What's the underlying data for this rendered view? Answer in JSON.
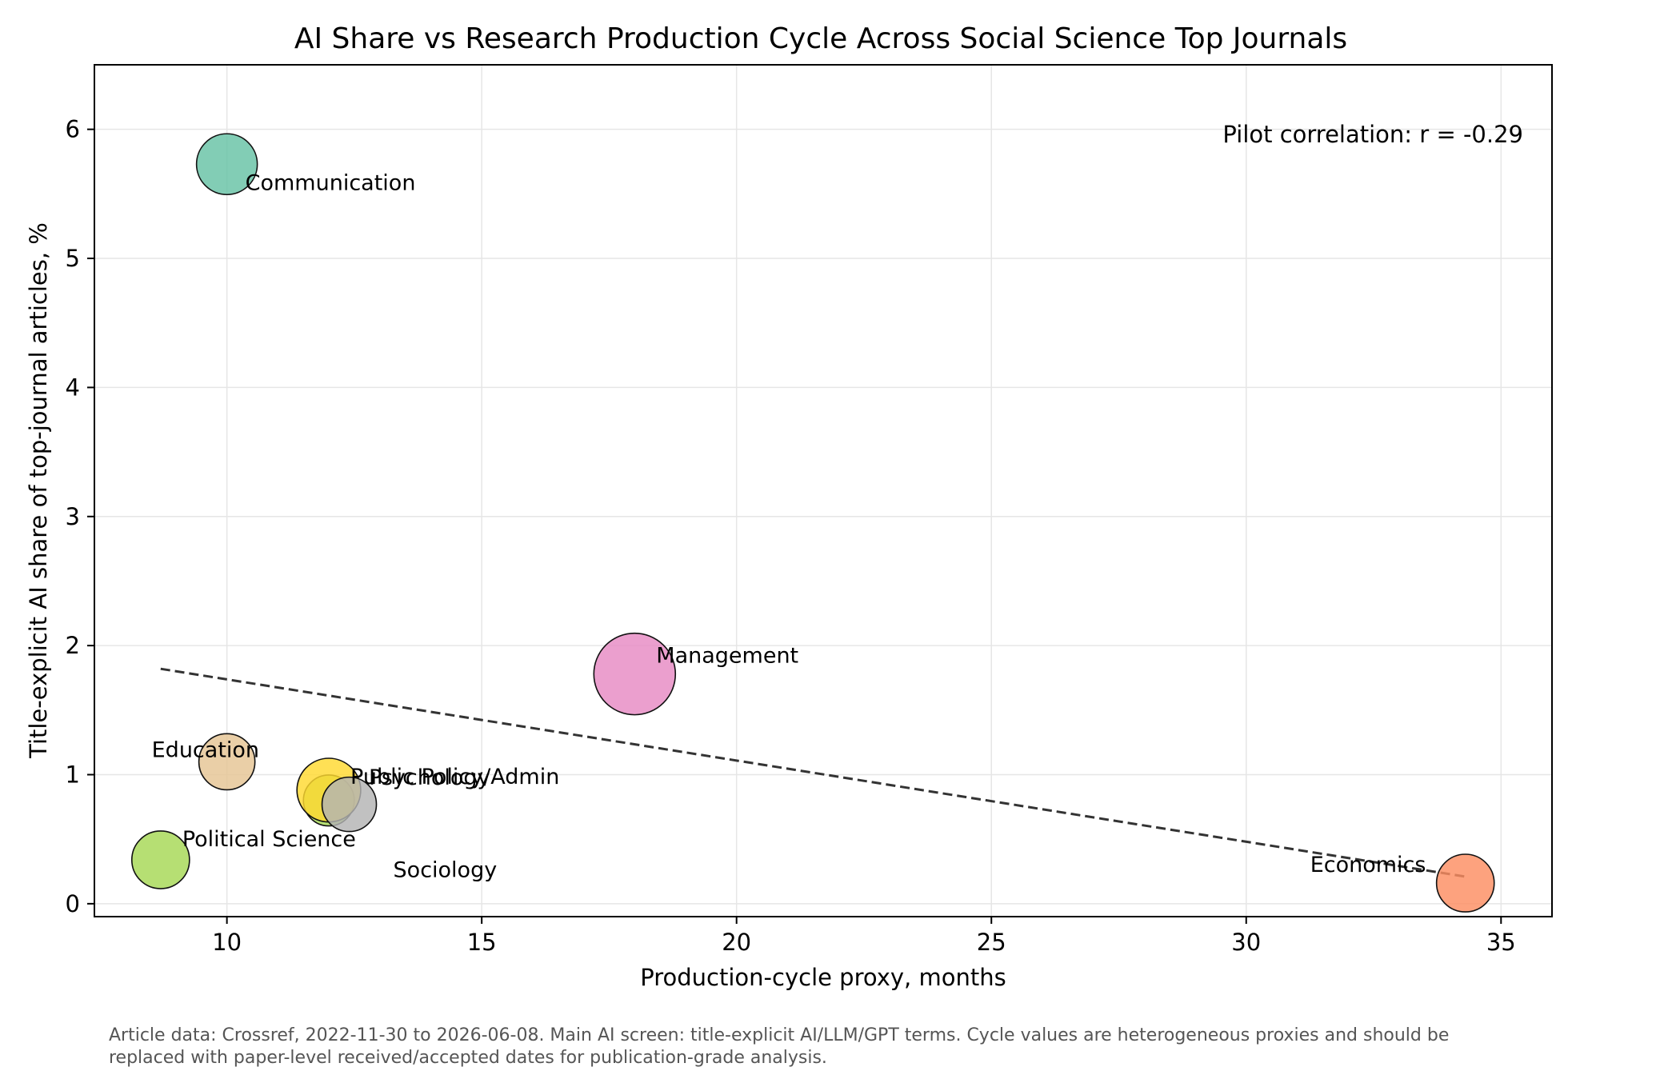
{
  "chart_data": {
    "type": "scatter",
    "title": "AI Share vs Research Production Cycle Across Social Science Top Journals",
    "xlabel": "Production-cycle proxy, months",
    "ylabel": "Title-explicit AI share of top-journal articles, %",
    "xlim": [
      7.4,
      36.0
    ],
    "ylim": [
      -0.1,
      6.5
    ],
    "xticks": [
      10,
      15,
      20,
      25,
      30,
      35
    ],
    "yticks": [
      0,
      1,
      2,
      3,
      4,
      5,
      6
    ],
    "grid": true,
    "points": [
      {
        "label": "Communication",
        "x": 10.0,
        "y": 5.73,
        "size": 1.0,
        "color": "#66c2a5"
      },
      {
        "label": "Management",
        "x": 18.0,
        "y": 1.78,
        "size": 1.8,
        "color": "#e78ac3"
      },
      {
        "label": "Education",
        "x": 10.0,
        "y": 1.1,
        "size": 0.85,
        "color": "#e5c494"
      },
      {
        "label": "Public Policy/Admin",
        "x": 12.0,
        "y": 0.8,
        "size": 0.7,
        "color": "#a6d854"
      },
      {
        "label": "Psychology",
        "x": 12.0,
        "y": 0.88,
        "size": 1.1,
        "color": "#ffd92f"
      },
      {
        "label": "Sociology",
        "x": 12.4,
        "y": 0.77,
        "size": 0.8,
        "color": "#b3b3b3"
      },
      {
        "label": "Political Science",
        "x": 8.7,
        "y": 0.34,
        "size": 0.9,
        "color": "#a6d854"
      },
      {
        "label": "Economics",
        "x": 34.3,
        "y": 0.16,
        "size": 0.9,
        "color": "#fc8d62"
      }
    ],
    "trendline": {
      "x": [
        8.7,
        34.3
      ],
      "y": [
        1.82,
        0.21
      ],
      "style": "dashed"
    },
    "annotation": "Pilot correlation: r = -0.29"
  },
  "caption": {
    "line1": "Article data: Crossref, 2022-11-30 to 2026-06-08. Main AI screen: title-explicit AI/LLM/GPT terms. Cycle values are heterogeneous proxies and should be",
    "line2": "replaced with paper-level received/accepted dates for publication-grade analysis."
  }
}
